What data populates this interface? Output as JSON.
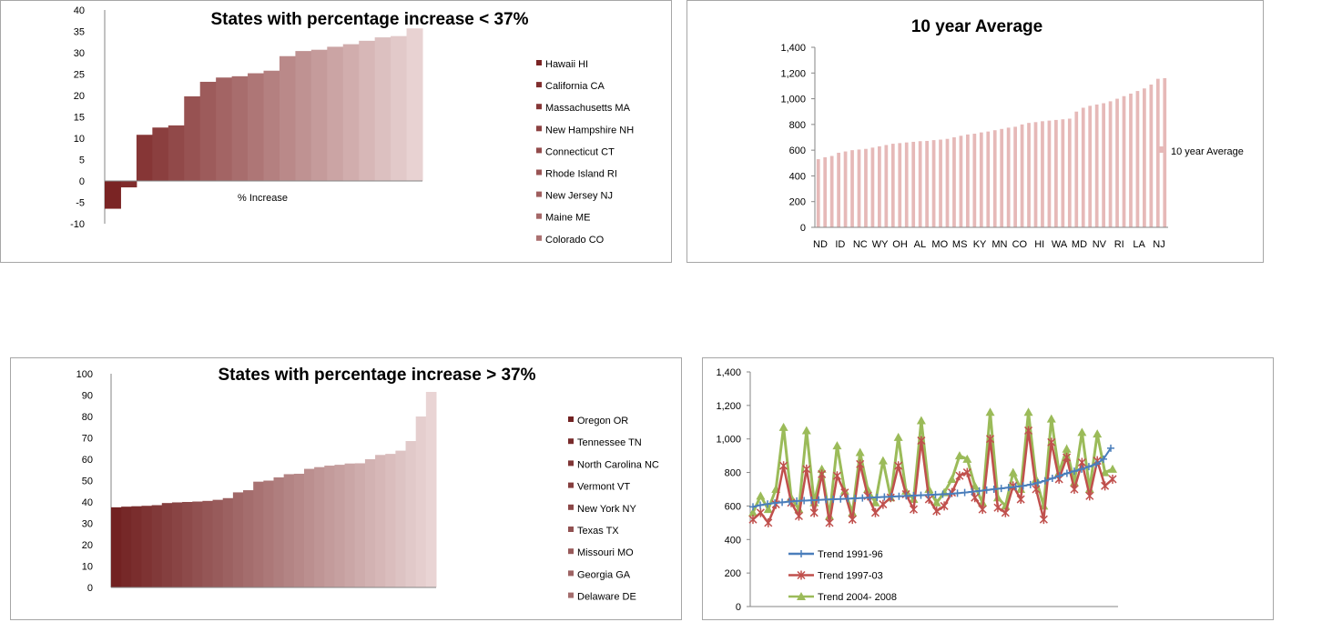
{
  "charts": [
    {
      "title": "States with percentage increase <  37%",
      "type": "bar",
      "xlabel": "% Increase",
      "ylim": [
        -10,
        40
      ],
      "ytick_labels": [
        "-10",
        "-5",
        "0",
        "5",
        "10",
        "15",
        "20",
        "25",
        "30",
        "35",
        "40"
      ],
      "values": [
        -6.5,
        -1.5,
        10.8,
        12.5,
        13.0,
        19.8,
        23.2,
        24.2,
        24.5,
        25.2,
        25.8,
        29.2,
        30.4,
        30.7,
        31.4,
        32.0,
        32.8,
        33.6,
        33.9,
        35.7
      ],
      "legend": [
        "Hawaii  HI",
        "California  CA",
        "Massachusetts  MA",
        "New Hampshire  NH",
        "Connecticut  CT",
        "Rhode Island  RI",
        "New Jersey  NJ",
        "Maine  ME",
        "Colorado  CO"
      ],
      "colors": [
        "#7a2424",
        "#e8d2d2"
      ]
    },
    {
      "title": "10 year Average",
      "type": "bar",
      "ylim": [
        0,
        1400
      ],
      "ytick_labels": [
        "0",
        "200",
        "400",
        "600",
        "800",
        "1,000",
        "1,200",
        "1,400"
      ],
      "x_labels": [
        "ND",
        "ID",
        "NC",
        "WY",
        "OH",
        "AL",
        "MO",
        "MS",
        "KY",
        "MN",
        "CO",
        "HI",
        "WA",
        "MD",
        "NV",
        "RI",
        "LA",
        "NJ"
      ],
      "values": [
        530,
        545,
        555,
        580,
        590,
        600,
        605,
        610,
        620,
        630,
        640,
        650,
        655,
        660,
        665,
        670,
        672,
        678,
        682,
        688,
        700,
        712,
        722,
        728,
        738,
        745,
        755,
        765,
        775,
        782,
        800,
        812,
        818,
        825,
        830,
        835,
        840,
        845,
        900,
        930,
        945,
        955,
        965,
        980,
        1000,
        1020,
        1040,
        1060,
        1080,
        1110,
        1155,
        1160
      ],
      "legend": [
        "10 year Average"
      ],
      "colors": [
        "#e6b9b8"
      ]
    },
    {
      "title": "States with percentage increase > 37%",
      "type": "bar",
      "ylim": [
        0,
        100
      ],
      "ytick_labels": [
        "0",
        "10",
        "20",
        "30",
        "40",
        "50",
        "60",
        "70",
        "80",
        "90",
        "100"
      ],
      "values": [
        37.5,
        37.8,
        38.0,
        38.2,
        38.5,
        39.5,
        39.8,
        40.0,
        40.2,
        40.5,
        41.0,
        41.8,
        44.5,
        45.5,
        49.5,
        50.0,
        51.5,
        53.0,
        53.2,
        55.5,
        56.3,
        57.0,
        57.4,
        58.0,
        58.1,
        60.0,
        62.0,
        62.5,
        64.0,
        68.5,
        80.0,
        91.5
      ],
      "legend": [
        "Oregon  OR",
        "Tennessee  TN",
        "North Carolina  NC",
        "Vermont  VT",
        "New York  NY",
        "Texas  TX",
        "Missouri  MO",
        "Georgia  GA",
        "Delaware  DE"
      ],
      "colors": [
        "#722222",
        "#e9d4d4"
      ]
    },
    {
      "type": "line",
      "ylim": [
        0,
        1400
      ],
      "ytick_labels": [
        "0",
        "200",
        "400",
        "600",
        "800",
        "1,000",
        "1,200",
        "1,400"
      ],
      "series": [
        {
          "name": "Trend 1991-96",
          "color": "#4a7ebb",
          "marker": "plus",
          "values": [
            595,
            605,
            612,
            618,
            622,
            626,
            630,
            632,
            634,
            636,
            638,
            640,
            642,
            644,
            646,
            648,
            650,
            652,
            654,
            656,
            658,
            660,
            662,
            664,
            666,
            668,
            670,
            672,
            676,
            680,
            685,
            690,
            695,
            700,
            705,
            710,
            715,
            720,
            728,
            738,
            750,
            765,
            780,
            795,
            808,
            820,
            835,
            850,
            880,
            945
          ]
        },
        {
          "name": "Trend 1997-03",
          "color": "#c0504d",
          "marker": "star",
          "values": [
            520,
            560,
            500,
            610,
            840,
            620,
            540,
            820,
            560,
            790,
            500,
            780,
            680,
            520,
            850,
            660,
            560,
            610,
            650,
            840,
            670,
            580,
            990,
            640,
            570,
            600,
            680,
            780,
            800,
            650,
            580,
            1000,
            590,
            560,
            720,
            640,
            1050,
            700,
            520,
            980,
            760,
            890,
            700,
            860,
            660,
            870,
            720,
            760
          ]
        },
        {
          "name": "Trend 2004- 2008",
          "color": "#9bbb59",
          "marker": "triangle",
          "values": [
            560,
            660,
            580,
            700,
            1070,
            650,
            580,
            1050,
            620,
            820,
            540,
            960,
            690,
            560,
            920,
            700,
            620,
            870,
            650,
            1010,
            690,
            640,
            1110,
            700,
            620,
            680,
            760,
            900,
            880,
            720,
            620,
            1160,
            650,
            600,
            800,
            700,
            1160,
            760,
            600,
            1120,
            800,
            940,
            740,
            1040,
            700,
            1030,
            800,
            820
          ]
        }
      ]
    }
  ]
}
